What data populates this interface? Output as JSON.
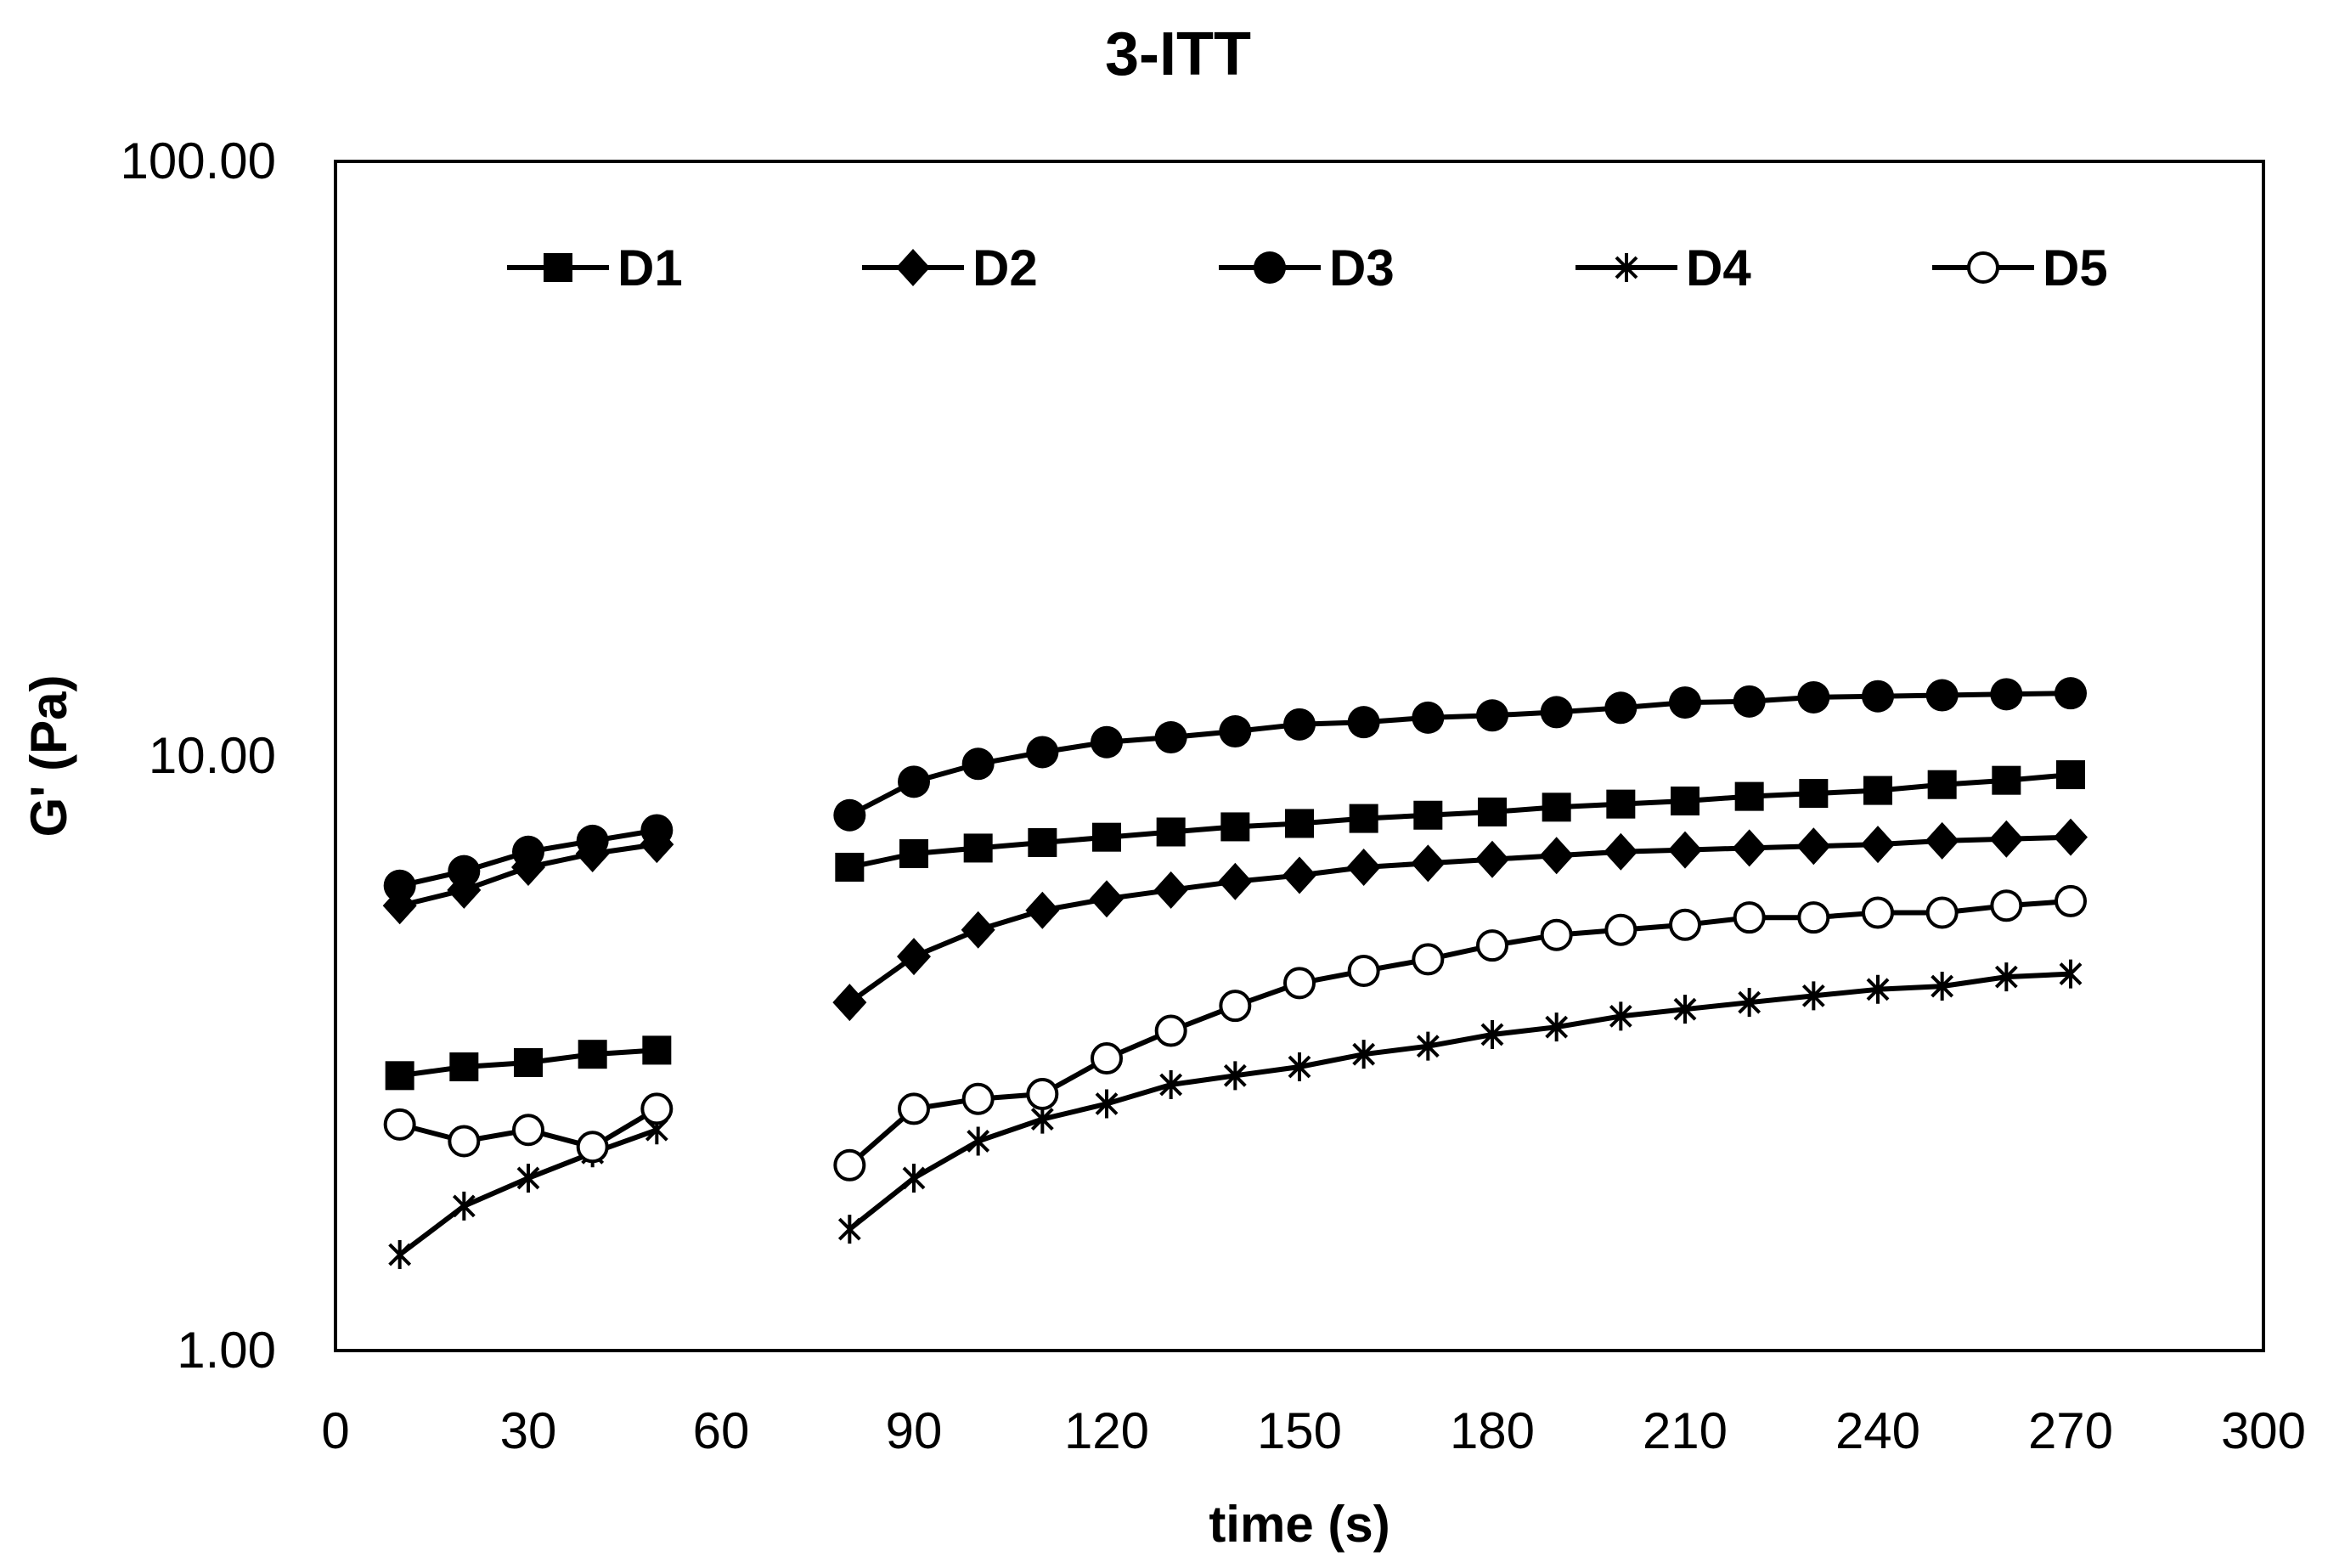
{
  "chart_data": {
    "type": "line",
    "title": "3-ITT",
    "xlabel": "time (s)",
    "ylabel": "G' (Pa)",
    "xlim": [
      0,
      300
    ],
    "ylim": [
      1,
      100
    ],
    "yscale": "log",
    "x_ticks": [
      "0",
      "30",
      "60",
      "90",
      "120",
      "150",
      "180",
      "210",
      "240",
      "270",
      "300"
    ],
    "y_ticks": [
      "1.00",
      "10.00",
      "100.00"
    ],
    "grid": false,
    "legend_position": "top",
    "line_color": "#000000",
    "series": [
      {
        "name": "D1",
        "marker": "square",
        "segments": [
          {
            "x": [
              10,
              20,
              30,
              40,
              50
            ],
            "y": [
              2.9,
              3.0,
              3.05,
              3.15,
              3.2
            ]
          },
          {
            "x": [
              80,
              90,
              100,
              110,
              120,
              130,
              140,
              150,
              160,
              170,
              180,
              190,
              200,
              210,
              220,
              230,
              240,
              250,
              260,
              270
            ],
            "y": [
              6.5,
              6.85,
              7.0,
              7.15,
              7.3,
              7.45,
              7.6,
              7.7,
              7.85,
              7.95,
              8.05,
              8.2,
              8.3,
              8.4,
              8.55,
              8.65,
              8.75,
              8.95,
              9.1,
              9.3
            ]
          }
        ]
      },
      {
        "name": "D2",
        "marker": "diamond",
        "segments": [
          {
            "x": [
              10,
              20,
              30,
              40,
              50
            ],
            "y": [
              5.6,
              5.95,
              6.5,
              6.85,
              7.1
            ]
          },
          {
            "x": [
              80,
              90,
              100,
              110,
              120,
              130,
              140,
              150,
              160,
              170,
              180,
              190,
              200,
              210,
              220,
              230,
              240,
              250,
              260,
              270
            ],
            "y": [
              3.85,
              4.6,
              5.1,
              5.5,
              5.75,
              5.95,
              6.15,
              6.3,
              6.5,
              6.6,
              6.7,
              6.8,
              6.9,
              6.95,
              7.0,
              7.05,
              7.1,
              7.2,
              7.25,
              7.3
            ]
          }
        ]
      },
      {
        "name": "D3",
        "marker": "circle",
        "segments": [
          {
            "x": [
              10,
              20,
              30,
              40,
              50
            ],
            "y": [
              6.05,
              6.4,
              6.9,
              7.2,
              7.5
            ]
          },
          {
            "x": [
              80,
              90,
              100,
              110,
              120,
              130,
              140,
              150,
              160,
              170,
              180,
              190,
              200,
              210,
              220,
              230,
              240,
              250,
              260,
              270
            ],
            "y": [
              7.95,
              9.05,
              9.7,
              10.15,
              10.55,
              10.75,
              11.0,
              11.3,
              11.4,
              11.6,
              11.7,
              11.85,
              12.05,
              12.3,
              12.35,
              12.55,
              12.6,
              12.65,
              12.7,
              12.75
            ]
          }
        ]
      },
      {
        "name": "D4",
        "marker": "asterisk",
        "segments": [
          {
            "x": [
              10,
              20,
              30,
              40,
              50
            ],
            "y": [
              1.45,
              1.75,
              1.95,
              2.15,
              2.35
            ]
          },
          {
            "x": [
              80,
              90,
              100,
              110,
              120,
              130,
              140,
              150,
              160,
              170,
              180,
              190,
              200,
              210,
              220,
              230,
              240,
              250,
              260,
              270
            ],
            "y": [
              1.6,
              1.95,
              2.25,
              2.45,
              2.6,
              2.8,
              2.9,
              3.0,
              3.15,
              3.25,
              3.4,
              3.5,
              3.65,
              3.75,
              3.85,
              3.95,
              4.05,
              4.1,
              4.25,
              4.3
            ]
          }
        ]
      },
      {
        "name": "D5",
        "marker": "open-circle",
        "segments": [
          {
            "x": [
              10,
              20,
              30,
              40,
              50
            ],
            "y": [
              2.4,
              2.25,
              2.35,
              2.2,
              2.55
            ]
          },
          {
            "x": [
              80,
              90,
              100,
              110,
              120,
              130,
              140,
              150,
              160,
              170,
              180,
              190,
              200,
              210,
              220,
              230,
              240,
              250,
              260,
              270
            ],
            "y": [
              2.05,
              2.55,
              2.65,
              2.7,
              3.1,
              3.45,
              3.8,
              4.15,
              4.35,
              4.55,
              4.8,
              5.0,
              5.1,
              5.2,
              5.35,
              5.35,
              5.45,
              5.45,
              5.6,
              5.7
            ]
          }
        ]
      }
    ]
  }
}
